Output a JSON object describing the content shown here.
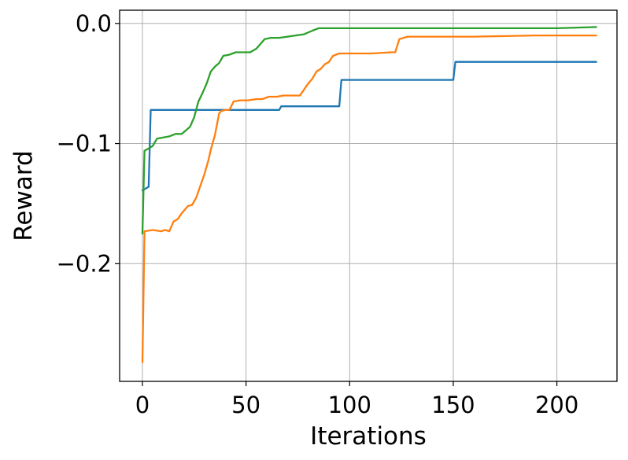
{
  "chart_data": {
    "type": "line",
    "title": "",
    "xlabel": "Iterations",
    "ylabel": "Reward",
    "xlim": [
      -11,
      229
    ],
    "ylim": [
      -0.298,
      0.011
    ],
    "x_ticks": [
      0,
      50,
      100,
      150,
      200
    ],
    "x_tick_labels": [
      "0",
      "50",
      "100",
      "150",
      "200"
    ],
    "y_ticks": [
      0.0,
      -0.1,
      -0.2
    ],
    "y_tick_labels": [
      "0.0",
      "−0.1",
      "−0.2"
    ],
    "grid": true,
    "legend": "none",
    "series": [
      {
        "color": "#1f77b4",
        "points": [
          [
            0,
            -0.139
          ],
          [
            2,
            -0.137
          ],
          [
            3,
            -0.136
          ],
          [
            4,
            -0.072
          ],
          [
            30,
            -0.072
          ],
          [
            66,
            -0.072
          ],
          [
            67,
            -0.069
          ],
          [
            95,
            -0.069
          ],
          [
            96,
            -0.047
          ],
          [
            150,
            -0.047
          ],
          [
            151,
            -0.032
          ],
          [
            219,
            -0.032
          ]
        ]
      },
      {
        "color": "#ff7f0e",
        "points": [
          [
            0,
            -0.282
          ],
          [
            1,
            -0.173
          ],
          [
            5,
            -0.172
          ],
          [
            9,
            -0.173
          ],
          [
            11,
            -0.172
          ],
          [
            13,
            -0.173
          ],
          [
            15,
            -0.165
          ],
          [
            17,
            -0.163
          ],
          [
            19,
            -0.158
          ],
          [
            22,
            -0.152
          ],
          [
            24,
            -0.151
          ],
          [
            26,
            -0.145
          ],
          [
            28,
            -0.135
          ],
          [
            30,
            -0.125
          ],
          [
            32,
            -0.113
          ],
          [
            33,
            -0.105
          ],
          [
            35,
            -0.093
          ],
          [
            37,
            -0.075
          ],
          [
            38,
            -0.073
          ],
          [
            40,
            -0.072
          ],
          [
            42,
            -0.072
          ],
          [
            44,
            -0.065
          ],
          [
            47,
            -0.064
          ],
          [
            51,
            -0.064
          ],
          [
            55,
            -0.063
          ],
          [
            58,
            -0.063
          ],
          [
            61,
            -0.061
          ],
          [
            65,
            -0.061
          ],
          [
            68,
            -0.06
          ],
          [
            72,
            -0.06
          ],
          [
            76,
            -0.06
          ],
          [
            78,
            -0.055
          ],
          [
            80,
            -0.05
          ],
          [
            82,
            -0.046
          ],
          [
            84,
            -0.04
          ],
          [
            86,
            -0.038
          ],
          [
            88,
            -0.034
          ],
          [
            90,
            -0.032
          ],
          [
            92,
            -0.027
          ],
          [
            95,
            -0.025
          ],
          [
            100,
            -0.025
          ],
          [
            110,
            -0.025
          ],
          [
            120,
            -0.024
          ],
          [
            122,
            -0.024
          ],
          [
            124,
            -0.013
          ],
          [
            126,
            -0.012
          ],
          [
            128,
            -0.011
          ],
          [
            140,
            -0.011
          ],
          [
            160,
            -0.011
          ],
          [
            190,
            -0.01
          ],
          [
            219,
            -0.01
          ]
        ]
      },
      {
        "color": "#2ca02c",
        "points": [
          [
            0,
            -0.175
          ],
          [
            1,
            -0.106
          ],
          [
            3,
            -0.104
          ],
          [
            5,
            -0.102
          ],
          [
            7,
            -0.096
          ],
          [
            10,
            -0.095
          ],
          [
            13,
            -0.094
          ],
          [
            16,
            -0.092
          ],
          [
            19,
            -0.092
          ],
          [
            21,
            -0.089
          ],
          [
            23,
            -0.086
          ],
          [
            25,
            -0.078
          ],
          [
            27,
            -0.065
          ],
          [
            29,
            -0.058
          ],
          [
            31,
            -0.05
          ],
          [
            33,
            -0.04
          ],
          [
            35,
            -0.036
          ],
          [
            37,
            -0.033
          ],
          [
            39,
            -0.027
          ],
          [
            42,
            -0.026
          ],
          [
            45,
            -0.024
          ],
          [
            48,
            -0.024
          ],
          [
            52,
            -0.024
          ],
          [
            55,
            -0.021
          ],
          [
            57,
            -0.017
          ],
          [
            59,
            -0.013
          ],
          [
            62,
            -0.012
          ],
          [
            66,
            -0.012
          ],
          [
            70,
            -0.011
          ],
          [
            74,
            -0.01
          ],
          [
            78,
            -0.009
          ],
          [
            82,
            -0.006
          ],
          [
            85,
            -0.004
          ],
          [
            88,
            -0.004
          ],
          [
            95,
            -0.004
          ],
          [
            110,
            -0.004
          ],
          [
            130,
            -0.004
          ],
          [
            150,
            -0.004
          ],
          [
            170,
            -0.004
          ],
          [
            200,
            -0.004
          ],
          [
            219,
            -0.003
          ]
        ]
      }
    ]
  }
}
